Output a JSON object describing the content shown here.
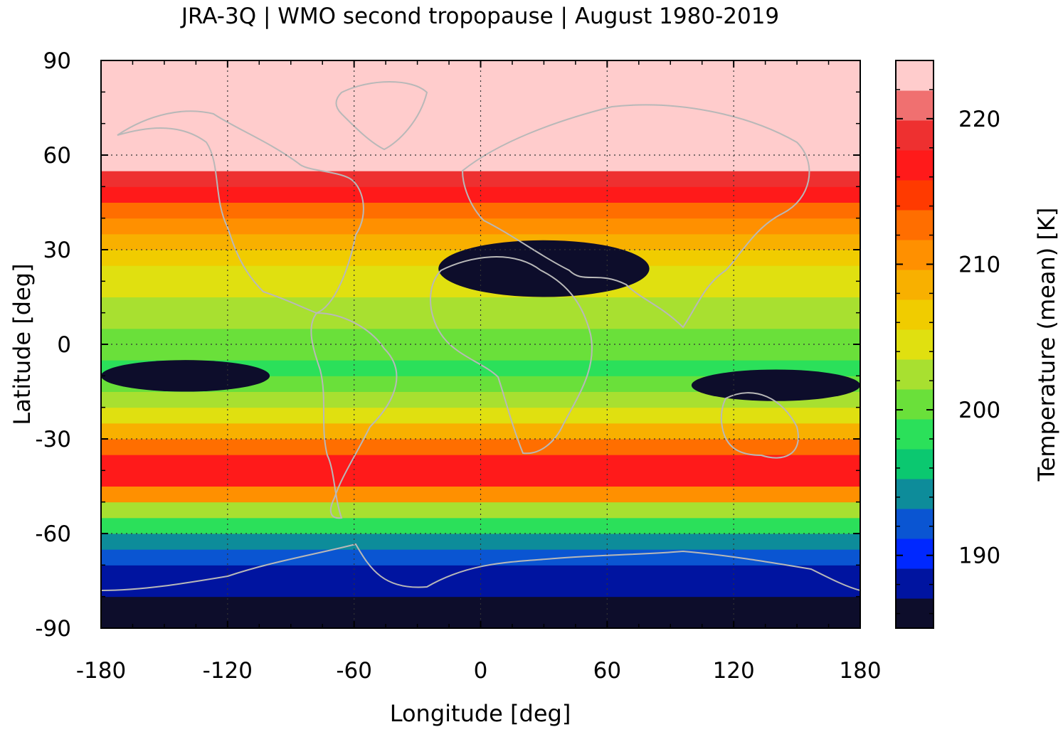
{
  "chart_data": {
    "type": "heatmap",
    "title": "JRA-3Q | WMO second tropopause | August 1980-2019",
    "xlabel": "Longitude [deg]",
    "ylabel": "Latitude [deg]",
    "xlim": [
      -180,
      180
    ],
    "ylim": [
      -90,
      90
    ],
    "xticks": [
      -180,
      -120,
      -60,
      0,
      60,
      120,
      180
    ],
    "yticks": [
      90,
      60,
      30,
      0,
      -30,
      -60,
      -90
    ],
    "grid": true,
    "colorbar": {
      "label": "Temperature (mean) [K]",
      "range": [
        185,
        224
      ],
      "ticks": [
        190,
        200,
        210,
        220
      ],
      "colors": [
        "#0d0d2b",
        "#0014a0",
        "#0028ff",
        "#0a55d2",
        "#0d8c9a",
        "#0bc870",
        "#2be05a",
        "#6ae03a",
        "#a8e030",
        "#e0e010",
        "#f0cc00",
        "#f8b000",
        "#ff9000",
        "#ff6e00",
        "#ff3a00",
        "#ff1a1a",
        "#ee3030",
        "#f07070",
        "#ffcccc"
      ]
    },
    "zonal_mean_profile": {
      "lat": [
        -90,
        -80,
        -70,
        -65,
        -60,
        -55,
        -50,
        -45,
        -40,
        -35,
        -30,
        -25,
        -20,
        -15,
        -10,
        -5,
        0,
        5,
        10,
        15,
        20,
        25,
        30,
        35,
        40,
        45,
        50,
        55,
        60,
        65,
        70,
        75,
        90
      ],
      "temperature": [
        185.5,
        187,
        190,
        193,
        197,
        200,
        206,
        214,
        218,
        214,
        210,
        206,
        203,
        200,
        199,
        199,
        200,
        201,
        202,
        203,
        204,
        205,
        208,
        210,
        212,
        215,
        218,
        221,
        223,
        224,
        224,
        224,
        224
      ]
    },
    "features": [
      {
        "description": "cold region",
        "lon": [
          -20,
          80
        ],
        "lat": [
          15,
          33
        ],
        "temperature": 185
      },
      {
        "description": "cold region",
        "lon": [
          -180,
          -100
        ],
        "lat": [
          -15,
          -5
        ],
        "temperature": 186
      },
      {
        "description": "cold region",
        "lon": [
          100,
          180
        ],
        "lat": [
          -18,
          -8
        ],
        "temperature": 187
      }
    ],
    "overlay": "coastlines"
  }
}
